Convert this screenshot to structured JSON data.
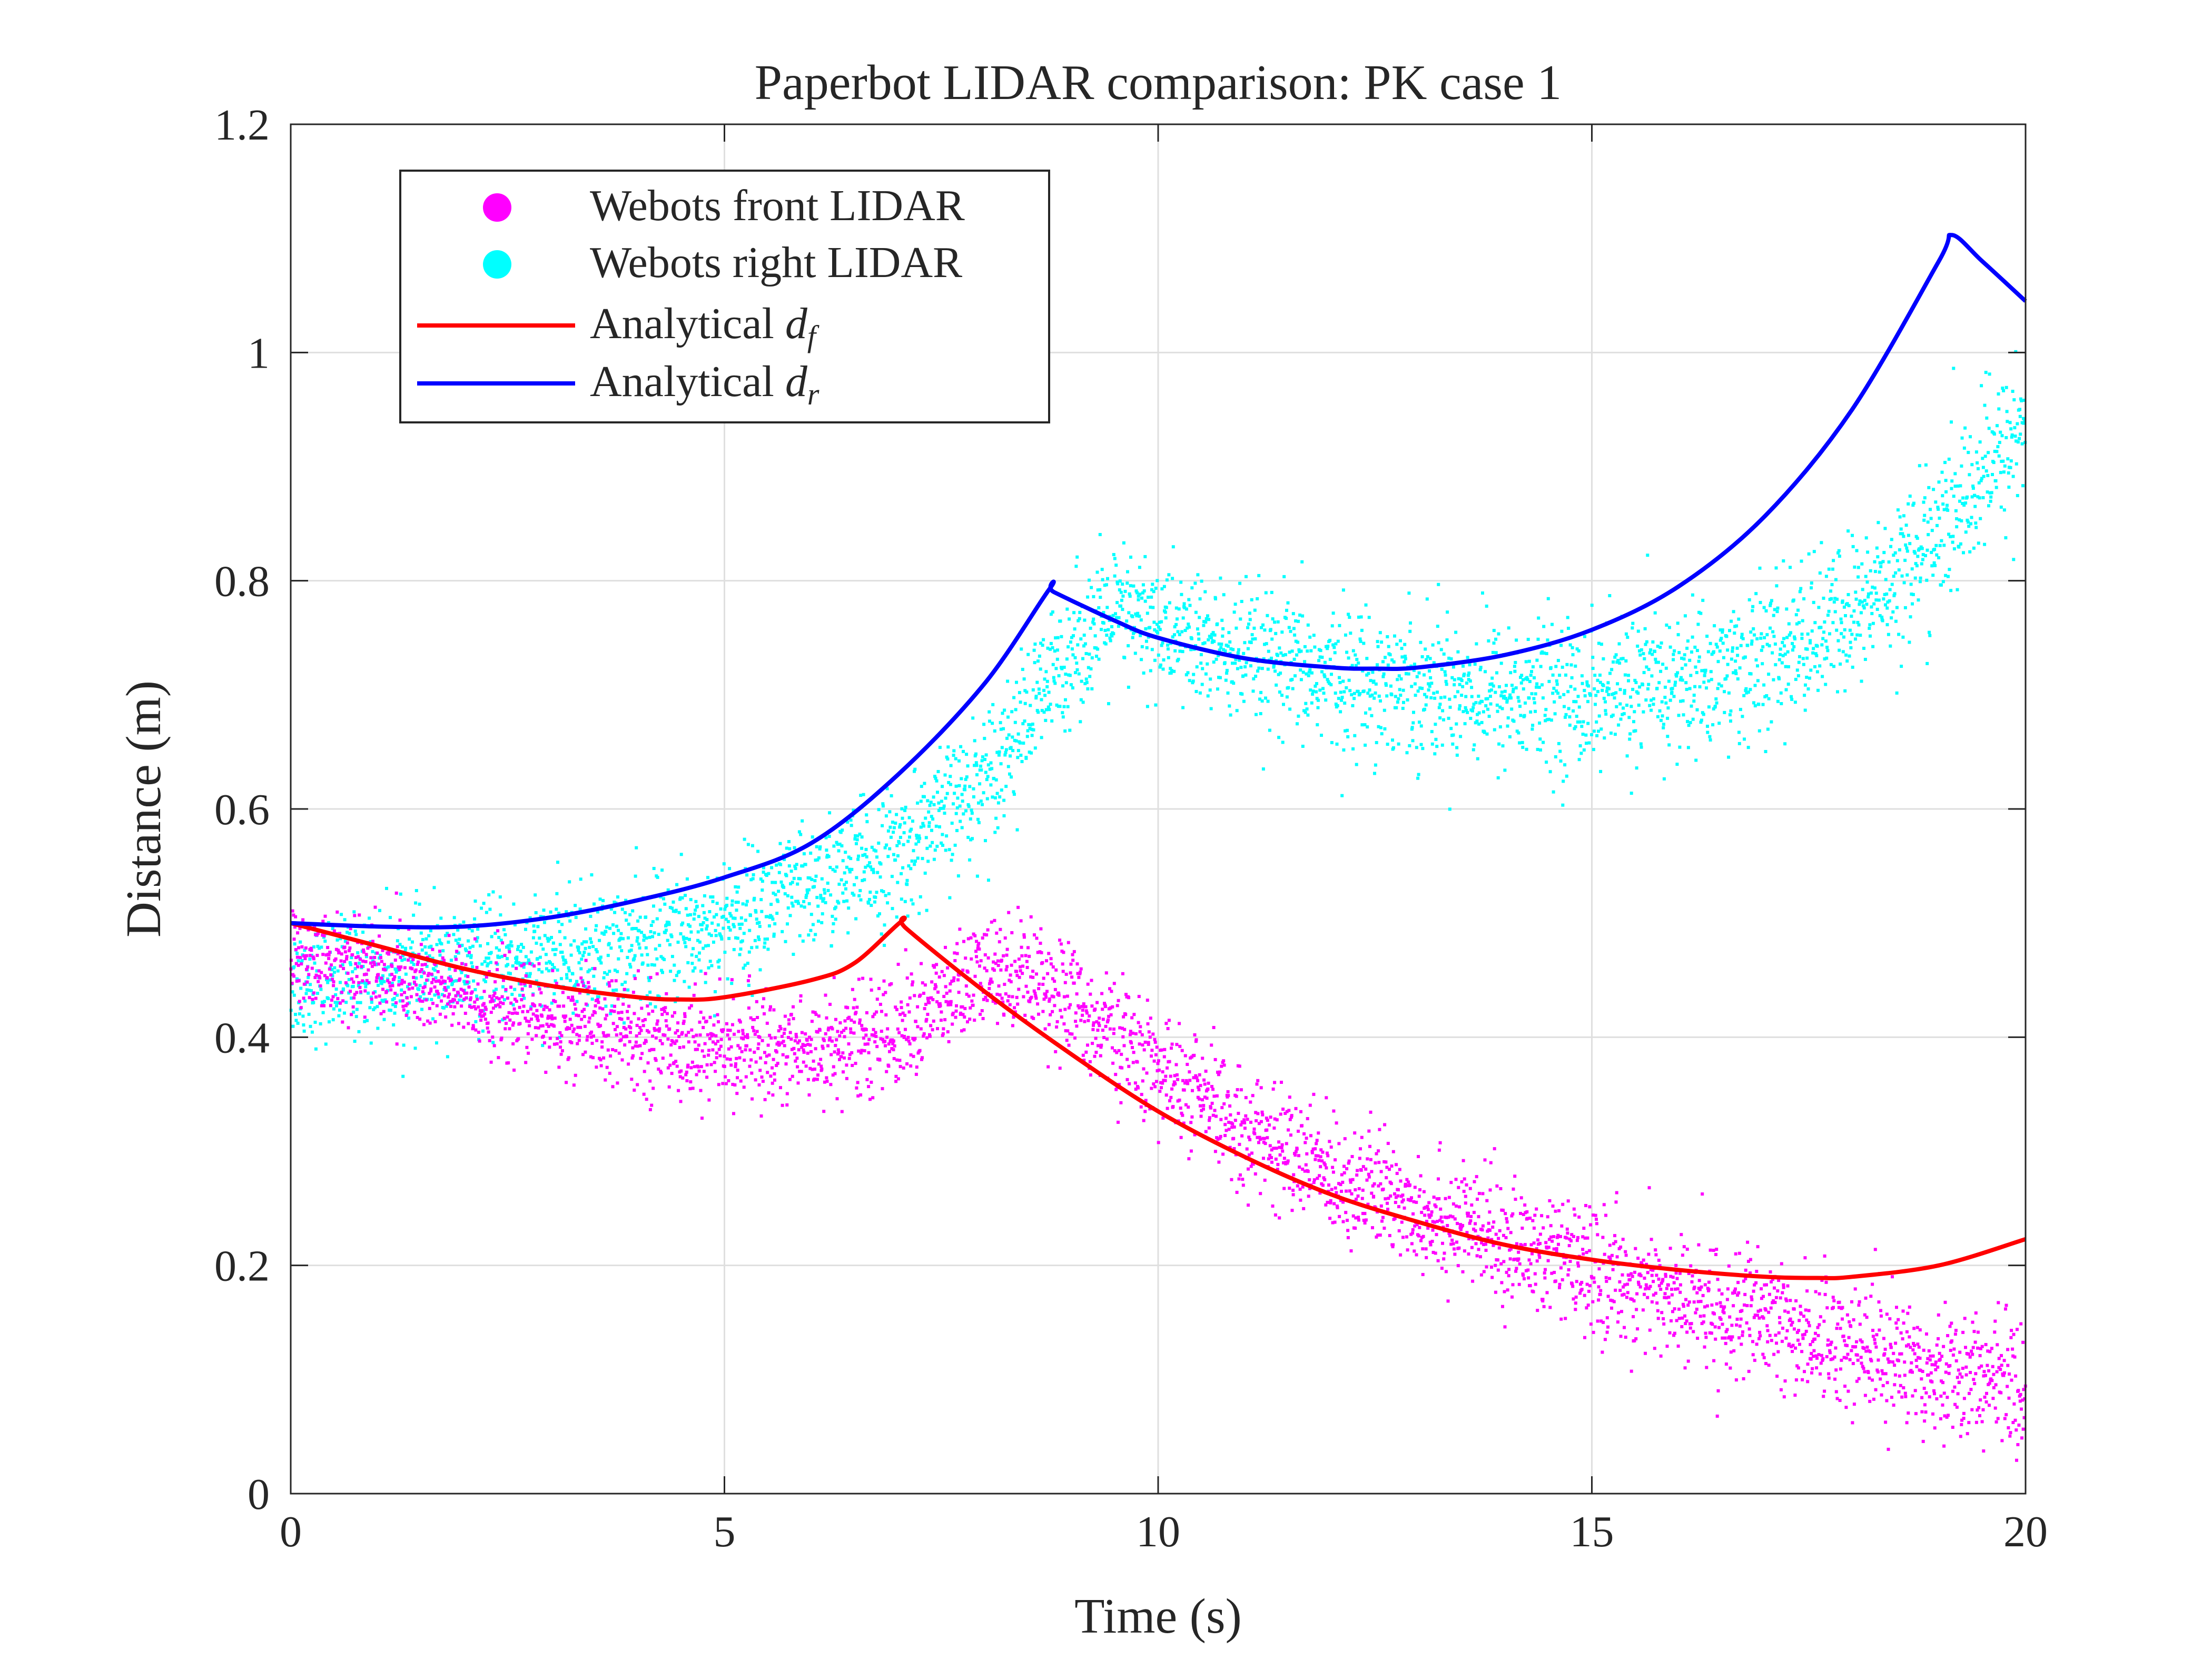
{
  "chart_data": {
    "type": "scatter",
    "title": "Paperbot LIDAR comparison: PK case 1",
    "xlabel": "Time (s)",
    "ylabel": "Distance (m)",
    "xlim": [
      0,
      20
    ],
    "ylim": [
      0,
      1.2
    ],
    "grid": true,
    "legend_position": "top-left",
    "x_ticks": [
      0,
      5,
      10,
      15,
      20
    ],
    "x_tick_labels": [
      "0",
      "5",
      "10",
      "15",
      "20"
    ],
    "y_ticks": [
      0,
      0.2,
      0.4,
      0.6,
      0.8,
      1.0,
      1.2
    ],
    "y_tick_labels": [
      "0",
      "0.2",
      "0.4",
      "0.6",
      "0.8",
      "1",
      "1.2"
    ],
    "colors": {
      "front_scatter": "#ff00ff",
      "right_scatter": "#00ffff",
      "df_line": "#ff0000",
      "dr_line": "#0000ff",
      "grid": "#dfdfdf",
      "axes": "#262626"
    },
    "series": [
      {
        "name": "Webots front LIDAR",
        "kind": "scatter",
        "color": "#ff00ff",
        "noise_sd": 0.025,
        "x": [
          0,
          1,
          2,
          3,
          4,
          5,
          6,
          7,
          7.5,
          8,
          8.5,
          9,
          10,
          11,
          12,
          13,
          14,
          15,
          16,
          17,
          18,
          19,
          20
        ],
        "y": [
          0.47,
          0.46,
          0.435,
          0.415,
          0.4,
          0.39,
          0.39,
          0.405,
          0.43,
          0.455,
          0.46,
          0.43,
          0.37,
          0.32,
          0.28,
          0.25,
          0.22,
          0.195,
          0.17,
          0.15,
          0.13,
          0.11,
          0.095
        ]
      },
      {
        "name": "Webots right LIDAR",
        "kind": "scatter",
        "color": "#00ffff",
        "noise_sd": 0.03,
        "x": [
          0,
          1,
          2,
          3,
          4,
          5,
          6,
          7,
          7.5,
          8,
          8.5,
          9,
          9.5,
          10,
          11,
          12,
          13,
          14,
          15,
          16,
          17,
          18,
          19,
          20
        ],
        "y": [
          0.45,
          0.455,
          0.46,
          0.47,
          0.48,
          0.5,
          0.53,
          0.56,
          0.59,
          0.63,
          0.68,
          0.74,
          0.77,
          0.76,
          0.73,
          0.715,
          0.71,
          0.7,
          0.7,
          0.71,
          0.73,
          0.77,
          0.84,
          0.94
        ]
      },
      {
        "name": "Analytical d_f",
        "legend_label_main": "Analytical ",
        "legend_label_sym": "d",
        "legend_label_sub": "f",
        "kind": "line",
        "color": "#ff0000",
        "x": [
          0,
          1,
          2,
          3,
          4,
          4.5,
          5,
          6,
          6.5,
          7.05,
          7.1,
          8,
          9,
          10,
          11,
          12,
          13,
          14,
          15,
          16,
          17,
          17.6,
          18,
          19,
          20
        ],
        "y": [
          0.5,
          0.48,
          0.46,
          0.445,
          0.435,
          0.433,
          0.435,
          0.45,
          0.465,
          0.502,
          0.495,
          0.44,
          0.385,
          0.335,
          0.295,
          0.262,
          0.238,
          0.218,
          0.205,
          0.196,
          0.19,
          0.189,
          0.19,
          0.2,
          0.223
        ]
      },
      {
        "name": "Analytical d_r",
        "legend_label_main": "Analytical ",
        "legend_label_sym": "d",
        "legend_label_sub": "r",
        "kind": "line",
        "color": "#0000ff",
        "x": [
          0,
          1,
          2,
          3,
          4,
          5,
          6,
          7,
          8,
          8.75,
          8.8,
          9.5,
          10,
          11,
          12,
          12.5,
          13,
          14,
          15,
          16,
          17,
          18,
          19,
          19.15,
          19.5,
          20
        ],
        "y": [
          0.5,
          0.497,
          0.497,
          0.505,
          0.52,
          0.54,
          0.57,
          0.63,
          0.71,
          0.793,
          0.79,
          0.765,
          0.75,
          0.732,
          0.724,
          0.723,
          0.724,
          0.735,
          0.757,
          0.795,
          0.857,
          0.95,
          1.08,
          1.103,
          1.08,
          1.045
        ]
      }
    ]
  }
}
